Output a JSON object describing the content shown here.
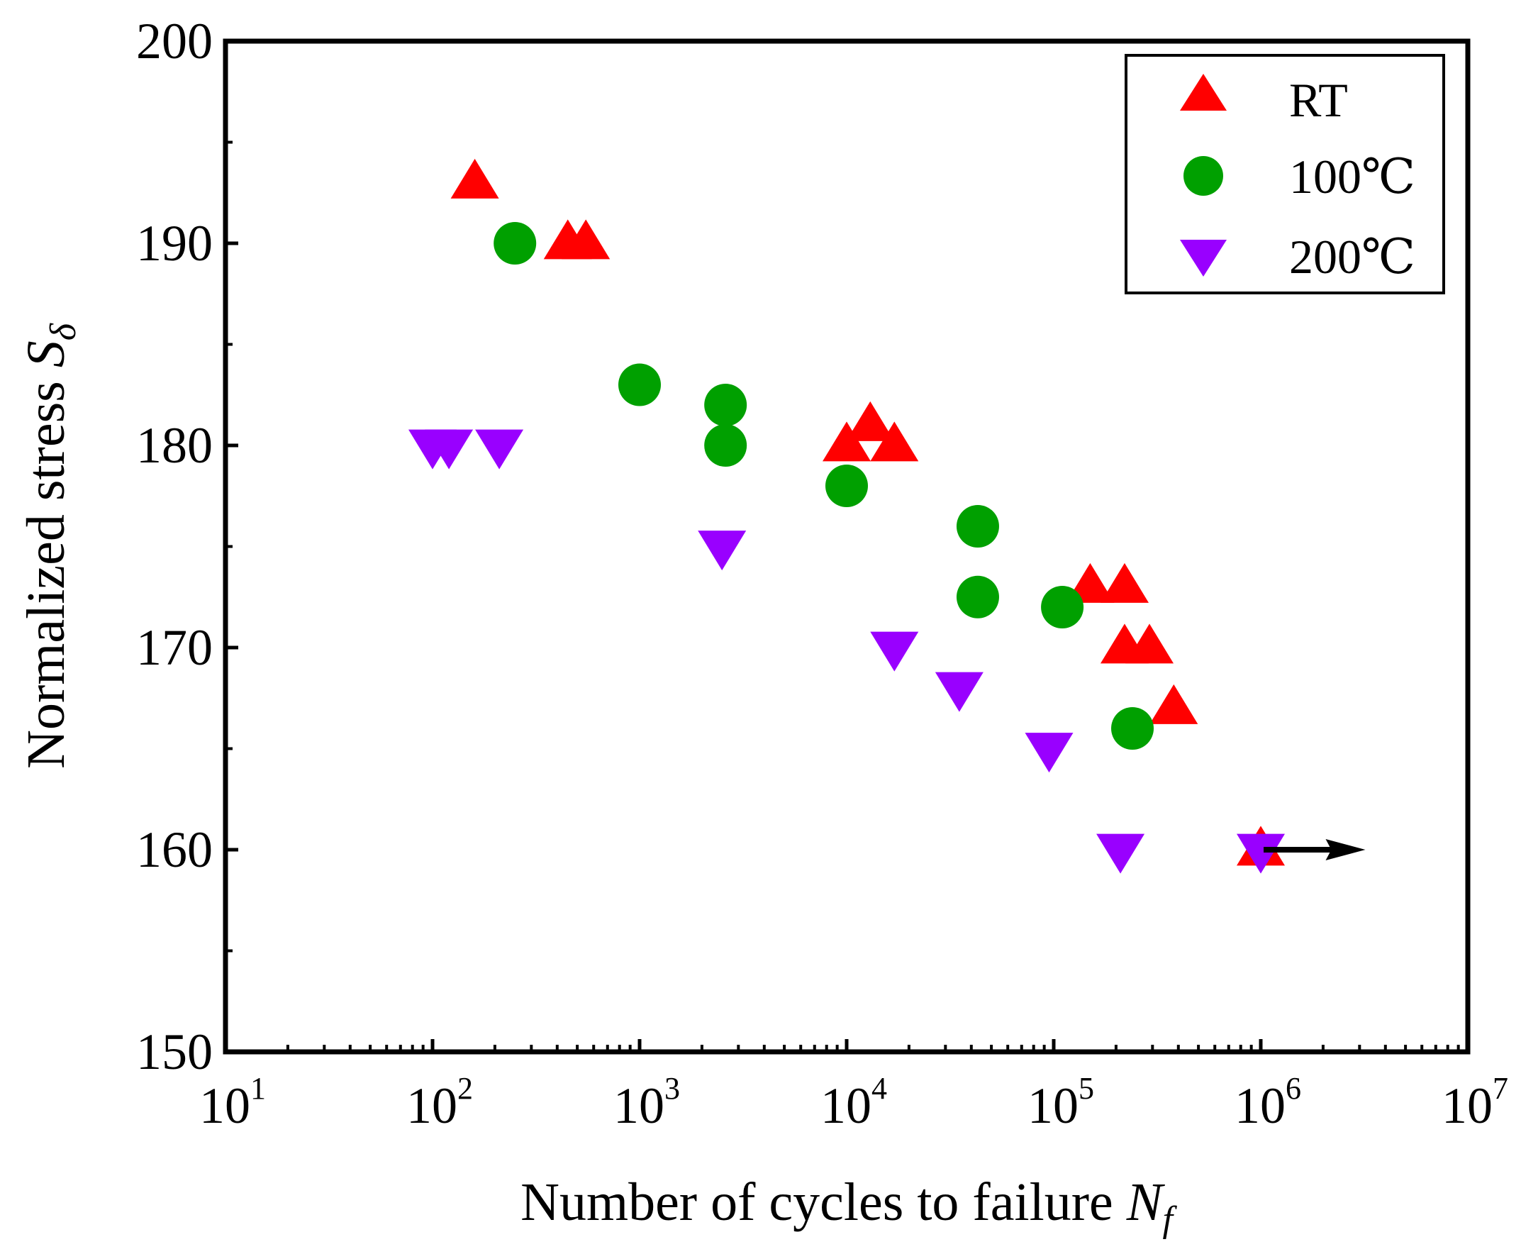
{
  "chart_data": {
    "type": "scatter",
    "title": "",
    "xlabel": "Number of cycles to failure",
    "xlabel_symbol": "N",
    "xlabel_subscript": "f",
    "ylabel": "Normalized stress",
    "ylabel_symbol": "S",
    "ylabel_subscript": "δ",
    "xscale": "log",
    "xlim": [
      10,
      10000000
    ],
    "ylim": [
      150,
      200
    ],
    "x_ticks": [
      {
        "base": "10",
        "exp": "1"
      },
      {
        "base": "10",
        "exp": "2"
      },
      {
        "base": "10",
        "exp": "3"
      },
      {
        "base": "10",
        "exp": "4"
      },
      {
        "base": "10",
        "exp": "5"
      },
      {
        "base": "10",
        "exp": "6"
      },
      {
        "base": "10",
        "exp": "7"
      }
    ],
    "y_ticks": [
      "150",
      "160",
      "170",
      "180",
      "190",
      "200"
    ],
    "legend_position": "top-right",
    "series": [
      {
        "name": "RT",
        "marker": "triangle-up",
        "color": "#ff0000",
        "points": [
          {
            "x": 160,
            "y": 193
          },
          {
            "x": 450,
            "y": 190
          },
          {
            "x": 550,
            "y": 190
          },
          {
            "x": 10000,
            "y": 180
          },
          {
            "x": 13000,
            "y": 181
          },
          {
            "x": 17000,
            "y": 180
          },
          {
            "x": 150000,
            "y": 173
          },
          {
            "x": 220000,
            "y": 173
          },
          {
            "x": 220000,
            "y": 170
          },
          {
            "x": 290000,
            "y": 170
          },
          {
            "x": 380000,
            "y": 167
          },
          {
            "x": 1000000,
            "y": 160
          }
        ]
      },
      {
        "name": "100℃",
        "marker": "circle",
        "color": "#00a000",
        "points": [
          {
            "x": 250,
            "y": 190
          },
          {
            "x": 1000,
            "y": 183
          },
          {
            "x": 2600,
            "y": 182
          },
          {
            "x": 2600,
            "y": 180
          },
          {
            "x": 10000,
            "y": 178
          },
          {
            "x": 43000,
            "y": 176
          },
          {
            "x": 43000,
            "y": 172.5
          },
          {
            "x": 110000,
            "y": 172
          },
          {
            "x": 240000,
            "y": 166
          }
        ]
      },
      {
        "name": "200℃",
        "marker": "triangle-down",
        "color": "#9900ff",
        "points": [
          {
            "x": 100,
            "y": 180
          },
          {
            "x": 120,
            "y": 180
          },
          {
            "x": 210,
            "y": 180
          },
          {
            "x": 2500,
            "y": 175
          },
          {
            "x": 17000,
            "y": 170
          },
          {
            "x": 35000,
            "y": 168
          },
          {
            "x": 95000,
            "y": 165
          },
          {
            "x": 210000,
            "y": 160
          },
          {
            "x": 1000000,
            "y": 160
          }
        ]
      }
    ],
    "annotations": [
      {
        "type": "arrow",
        "from": {
          "x": 1000000,
          "y": 160
        },
        "to": {
          "x": 3200000,
          "y": 160
        },
        "color": "#000000",
        "meaning": "runout"
      }
    ]
  }
}
